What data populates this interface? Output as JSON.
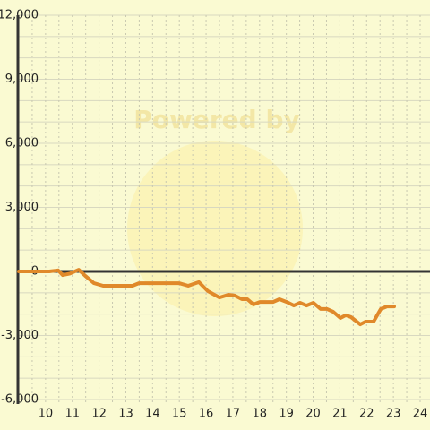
{
  "chart_data": {
    "type": "line",
    "watermark": "Powered by",
    "x": [
      9,
      10.14,
      10.47,
      10.64,
      10.91,
      11.24,
      11.48,
      11.81,
      12.15,
      13.25,
      13.49,
      14.99,
      15.33,
      15.73,
      16.06,
      16.5,
      16.83,
      17.07,
      17.34,
      17.54,
      17.77,
      18.01,
      18.51,
      18.74,
      19.01,
      19.28,
      19.51,
      19.75,
      20.01,
      20.28,
      20.52,
      20.75,
      21.02,
      21.22,
      21.42,
      21.76,
      21.96,
      22.26,
      22.53,
      22.76,
      23.03
    ],
    "series": [
      {
        "color": "#e0892a",
        "values": [
          0,
          0,
          50,
          -170,
          -100,
          80,
          -200,
          -550,
          -670,
          -670,
          -550,
          -550,
          -670,
          -500,
          -920,
          -1220,
          -1090,
          -1130,
          -1300,
          -1300,
          -1550,
          -1430,
          -1430,
          -1300,
          -1430,
          -1600,
          -1470,
          -1600,
          -1470,
          -1760,
          -1760,
          -1890,
          -2180,
          -2050,
          -2140,
          -2480,
          -2350,
          -2350,
          -1760,
          -1640,
          -1640
        ]
      }
    ],
    "xlim": [
      9,
      24
    ],
    "xticks": [
      10,
      11,
      12,
      13,
      14,
      15,
      16,
      17,
      18,
      19,
      20,
      21,
      22,
      23,
      24
    ],
    "ylim": [
      -6000,
      12000
    ],
    "yticks": [
      {
        "value": -6000,
        "label": "-6,000"
      },
      {
        "value": -3000,
        "label": "-3,000"
      },
      0,
      {
        "value": 3000,
        "label": "3,000"
      },
      {
        "value": 6000,
        "label": "6,000"
      },
      {
        "value": 9000,
        "label": "9,000"
      },
      {
        "value": 12000,
        "label": "12,000"
      }
    ],
    "grid": true
  }
}
